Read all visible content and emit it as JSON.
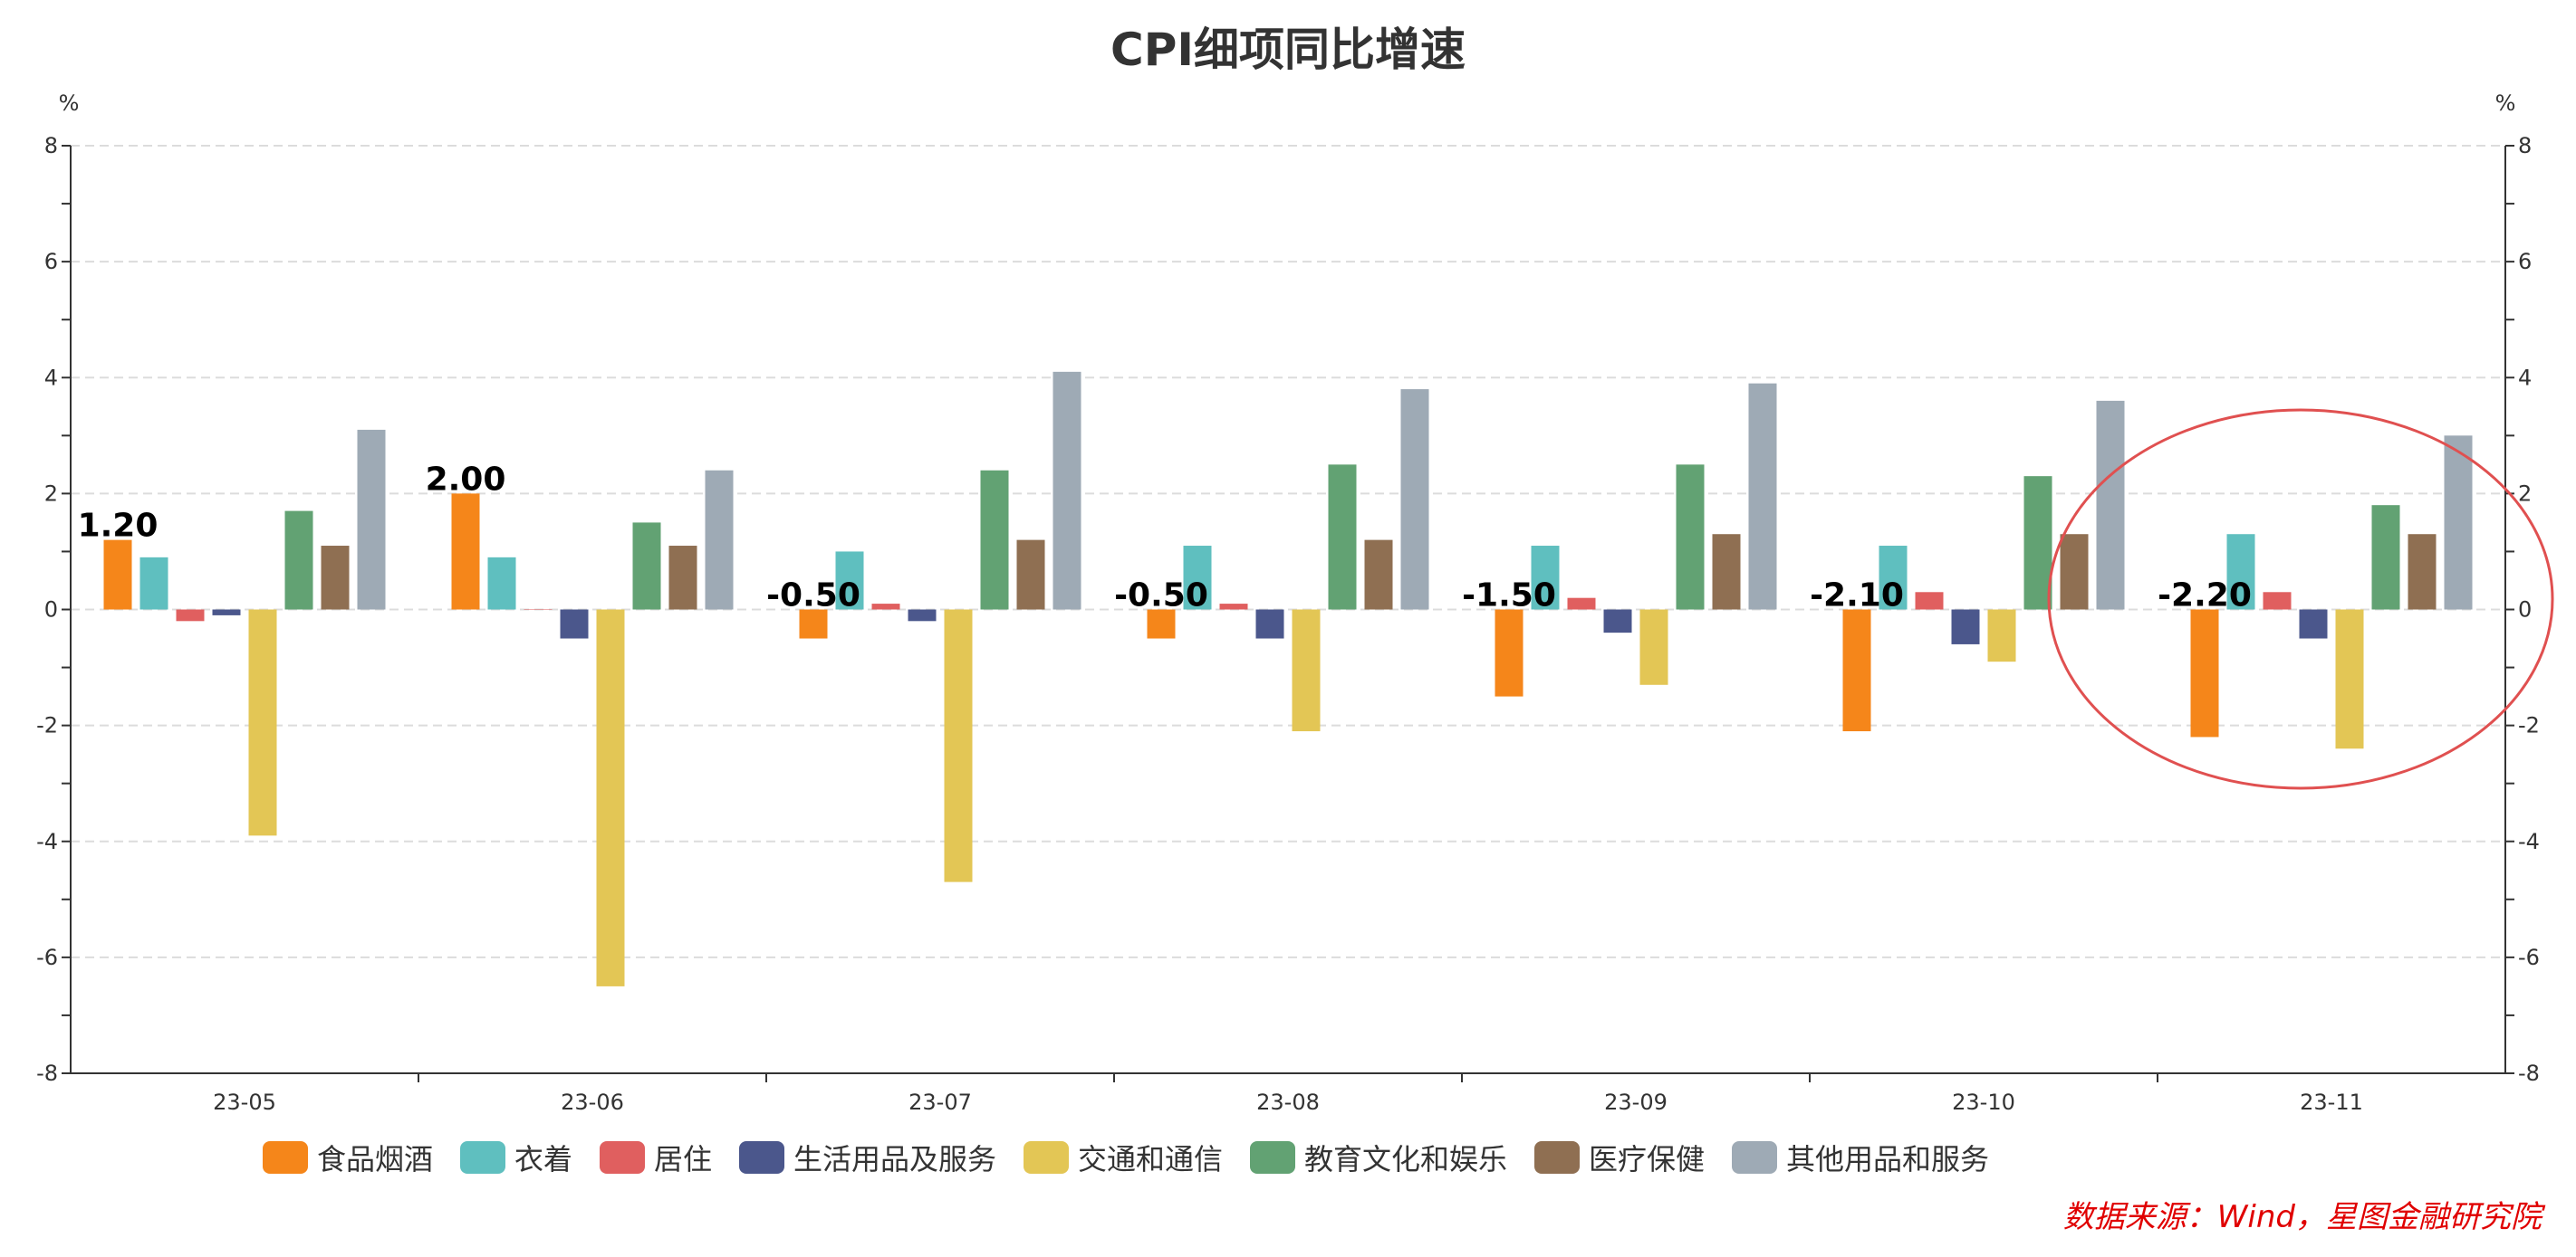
{
  "chart_data": {
    "type": "bar",
    "title": "CPI细项同比增速",
    "ylabel_left": "%",
    "ylabel_right": "%",
    "ylim": [
      -8,
      8
    ],
    "yticks": [
      -8,
      -6,
      -4,
      -2,
      0,
      2,
      4,
      6,
      8
    ],
    "grid": true,
    "legend_position": "bottom",
    "categories": [
      "23-05",
      "23-06",
      "23-07",
      "23-08",
      "23-09",
      "23-10",
      "23-11"
    ],
    "series": [
      {
        "name": "食品烟酒",
        "color": "#f5861a",
        "values": [
          1.2,
          2.0,
          -0.5,
          -0.5,
          -1.5,
          -2.1,
          -2.2
        ],
        "labels": [
          "1.20",
          "2.00",
          "-0.50",
          "-0.50",
          "-1.50",
          "-2.10",
          "-2.20"
        ]
      },
      {
        "name": "衣着",
        "color": "#5fbfbf",
        "values": [
          0.9,
          0.9,
          1.0,
          1.1,
          1.1,
          1.1,
          1.3
        ]
      },
      {
        "name": "居住",
        "color": "#e05f5f",
        "values": [
          -0.2,
          0.0,
          0.1,
          0.1,
          0.2,
          0.3,
          0.3
        ]
      },
      {
        "name": "生活用品及服务",
        "color": "#4b578c",
        "values": [
          -0.1,
          -0.5,
          -0.2,
          -0.5,
          -0.4,
          -0.6,
          -0.5
        ]
      },
      {
        "name": "交通和通信",
        "color": "#e3c655",
        "values": [
          -3.9,
          -6.5,
          -4.7,
          -2.1,
          -1.3,
          -0.9,
          -2.4
        ]
      },
      {
        "name": "教育文化和娱乐",
        "color": "#62a273",
        "values": [
          1.7,
          1.5,
          2.4,
          2.5,
          2.5,
          2.3,
          1.8
        ]
      },
      {
        "name": "医疗保健",
        "color": "#8f6f52",
        "values": [
          1.1,
          1.1,
          1.2,
          1.2,
          1.3,
          1.3,
          1.3
        ]
      },
      {
        "name": "其他用品和服务",
        "color": "#9eaab5",
        "values": [
          3.1,
          2.4,
          4.1,
          3.8,
          3.9,
          3.6,
          3.0
        ]
      }
    ],
    "annotation": {
      "type": "ellipse",
      "color": "#e05050",
      "highlight_category": "23-11"
    },
    "source": "数据来源：Wind，星图金融研究院",
    "source_color": "#e00000"
  }
}
